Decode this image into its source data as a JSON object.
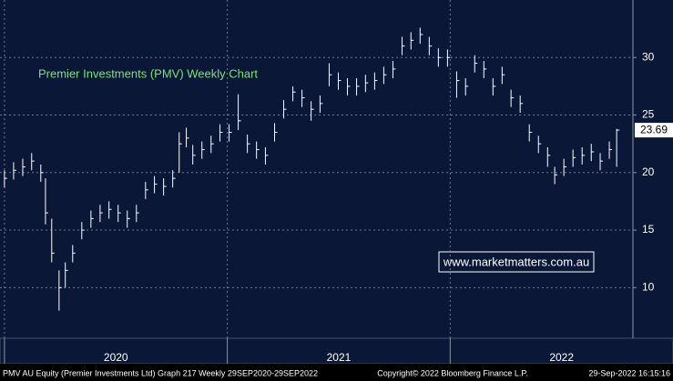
{
  "chart_data": {
    "type": "hlc",
    "title": "Premier Investments (PMV) Weekly Chart",
    "watermark": "www.marketmatters.com.au",
    "footer_left": "PMV AU Equity (Premier Investments Ltd) Graph 217  Weekly 29SEP2020-29SEP2022",
    "footer_center": "Copyright© 2022 Bloomberg Finance L.P.",
    "footer_right": "29-Sep-2022 16:15:16",
    "color": "#ffffff",
    "grid": true,
    "xlim": [
      2019.98,
      2022.82
    ],
    "xticks": [
      {
        "value": 2020,
        "label": "2020"
      },
      {
        "value": 2021,
        "label": "2021"
      },
      {
        "value": 2022,
        "label": "2022"
      }
    ],
    "ylim": [
      5.6,
      35
    ],
    "yticks": [
      10,
      15,
      20,
      25,
      30
    ],
    "x": [
      2020.0,
      2020.041,
      2020.082,
      2020.122,
      2020.163,
      2020.184,
      2020.212,
      2020.245,
      2020.273,
      2020.306,
      2020.347,
      2020.388,
      2020.429,
      2020.469,
      2020.51,
      2020.551,
      2020.592,
      2020.633,
      2020.673,
      2020.714,
      2020.755,
      2020.784,
      2020.816,
      2020.845,
      2020.886,
      2020.927,
      2020.967,
      2021.008,
      2021.049,
      2021.09,
      2021.131,
      2021.171,
      2021.212,
      2021.253,
      2021.294,
      2021.335,
      2021.376,
      2021.416,
      2021.457,
      2021.498,
      2021.539,
      2021.58,
      2021.62,
      2021.661,
      2021.702,
      2021.743,
      2021.784,
      2021.824,
      2021.865,
      2021.906,
      2021.947,
      2021.988,
      2022.029,
      2022.069,
      2022.11,
      2022.151,
      2022.192,
      2022.233,
      2022.273,
      2022.314,
      2022.355,
      2022.396,
      2022.437,
      2022.469,
      2022.51,
      2022.551,
      2022.592,
      2022.633,
      2022.673,
      2022.714,
      2022.747
    ],
    "values": [
      19.5,
      20.2,
      20.5,
      21,
      20,
      16.5,
      13,
      10,
      11.5,
      13,
      15,
      16,
      16.5,
      16.8,
      16.5,
      16,
      16.5,
      18.5,
      19,
      18.8,
      19.5,
      22.5,
      23,
      21.5,
      22,
      22.5,
      23.5,
      23.5,
      24.5,
      22.5,
      22,
      21.5,
      23.5,
      25.5,
      27,
      26.5,
      25.5,
      26,
      28.5,
      28,
      27.5,
      27.5,
      27.8,
      28,
      28.5,
      29,
      31,
      31.5,
      32,
      31,
      30,
      30,
      28,
      27.5,
      29.5,
      29,
      27.5,
      28.5,
      26.5,
      26,
      23.5,
      22.5,
      21.5,
      19.8,
      20.5,
      21.3,
      21.5,
      21.8,
      21,
      22,
      23.69
    ],
    "high": [
      20.2,
      20.9,
      21.2,
      21.7,
      20.7,
      19.5,
      16,
      11.5,
      12.2,
      13.7,
      15.7,
      16.7,
      17.2,
      17.5,
      17.2,
      16.7,
      17.2,
      19.2,
      19.7,
      19.5,
      20.2,
      23.5,
      23.9,
      22.4,
      22.7,
      23.2,
      24.2,
      24.2,
      26.8,
      23.3,
      22.7,
      22.2,
      24.3,
      26.3,
      27.5,
      27.2,
      26.2,
      26.7,
      29.5,
      28.7,
      28.2,
      28.2,
      28.5,
      28.7,
      29.2,
      29.7,
      31.8,
      32.2,
      32.6,
      31.8,
      30.8,
      30.7,
      28.8,
      28.2,
      30.2,
      29.7,
      28.2,
      29.2,
      27.2,
      26.7,
      24.2,
      23.2,
      22.2,
      20.5,
      21.2,
      22,
      22.2,
      22.5,
      21.7,
      22.7,
      23.8
    ],
    "low": [
      18.7,
      19.4,
      19.7,
      20.2,
      19.2,
      15.5,
      12.2,
      8,
      10,
      12.2,
      14.2,
      15.2,
      15.7,
      16,
      15.7,
      15.2,
      15.7,
      17.7,
      18.2,
      18,
      18.7,
      20,
      22.2,
      20.7,
      21.2,
      21.7,
      22.7,
      22.7,
      23.7,
      21.7,
      21.2,
      20.7,
      22.7,
      24.7,
      26.2,
      25.7,
      24.5,
      25.2,
      27.5,
      27.2,
      26.7,
      26.7,
      27,
      27.2,
      27.7,
      28.2,
      30.2,
      30.7,
      31.2,
      30.2,
      29.2,
      29.2,
      26.5,
      26.7,
      28.7,
      28.2,
      26.7,
      27.7,
      25.7,
      25.2,
      22.7,
      21.7,
      20.5,
      19,
      19.7,
      20.5,
      20.7,
      21,
      20.2,
      21.2,
      20.5
    ]
  }
}
